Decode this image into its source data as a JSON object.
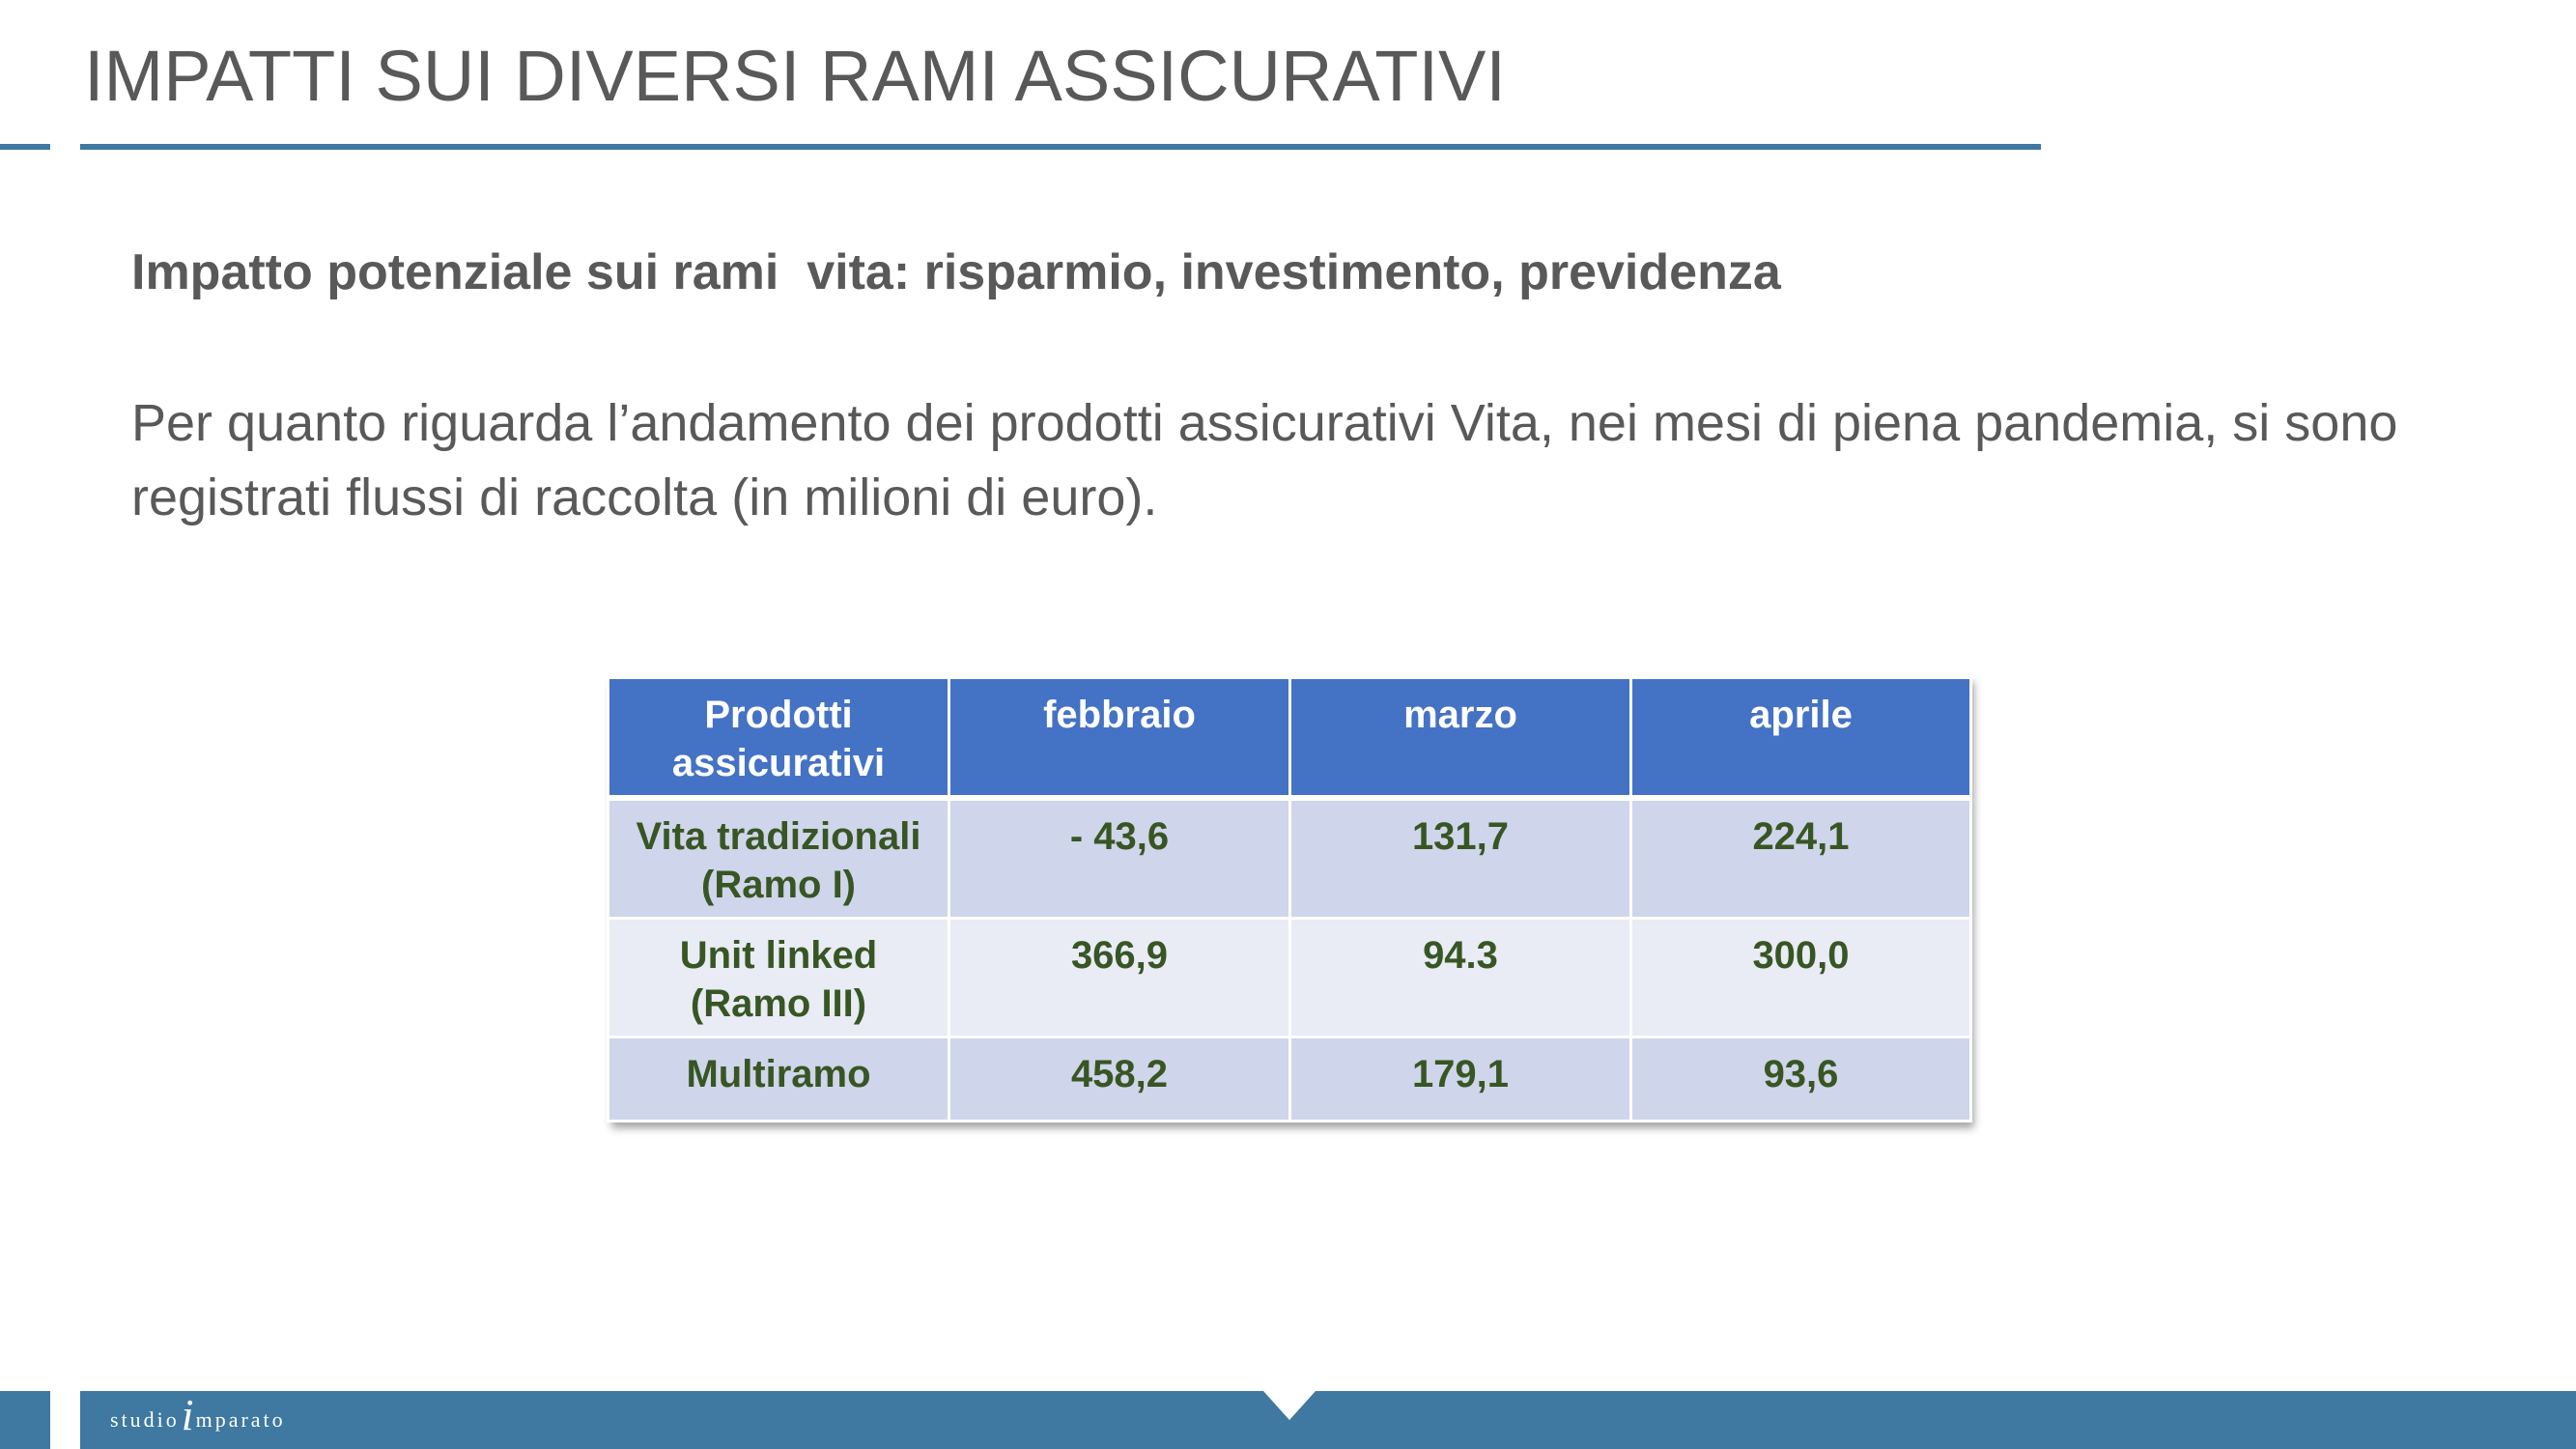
{
  "slide": {
    "title": "IMPATTI SUI DIVERSI RAMI ASSICURATIVI",
    "subtitle": "Impatto potenziale sui rami  vita: risparmio, investimento, previdenza",
    "paragraph": "Per quanto riguarda l’andamento dei prodotti assicurativi Vita, nei mesi di piena pandemia, si sono registrati flussi di raccolta (in milioni di euro)."
  },
  "table": {
    "headers": [
      "Prodotti assicurativi",
      "febbraio",
      "marzo",
      "aprile"
    ],
    "rows": [
      [
        "Vita tradizionali (Ramo I)",
        "- 43,6",
        "131,7",
        "224,1"
      ],
      [
        "Unit linked (Ramo III)",
        "366,9",
        "94.3",
        "300,0"
      ],
      [
        "Multiramo",
        "458,2",
        "179,1",
        "93,6"
      ]
    ]
  },
  "footer": {
    "logo_left": "studio",
    "logo_i": "i",
    "logo_right": "mparato"
  },
  "colors": {
    "accent": "#3f78a0",
    "header_fill": "#4472c4",
    "row_dark": "#cfd5ea",
    "row_light": "#e9ebf5",
    "cell_text": "#375623",
    "body_text": "#595959"
  }
}
